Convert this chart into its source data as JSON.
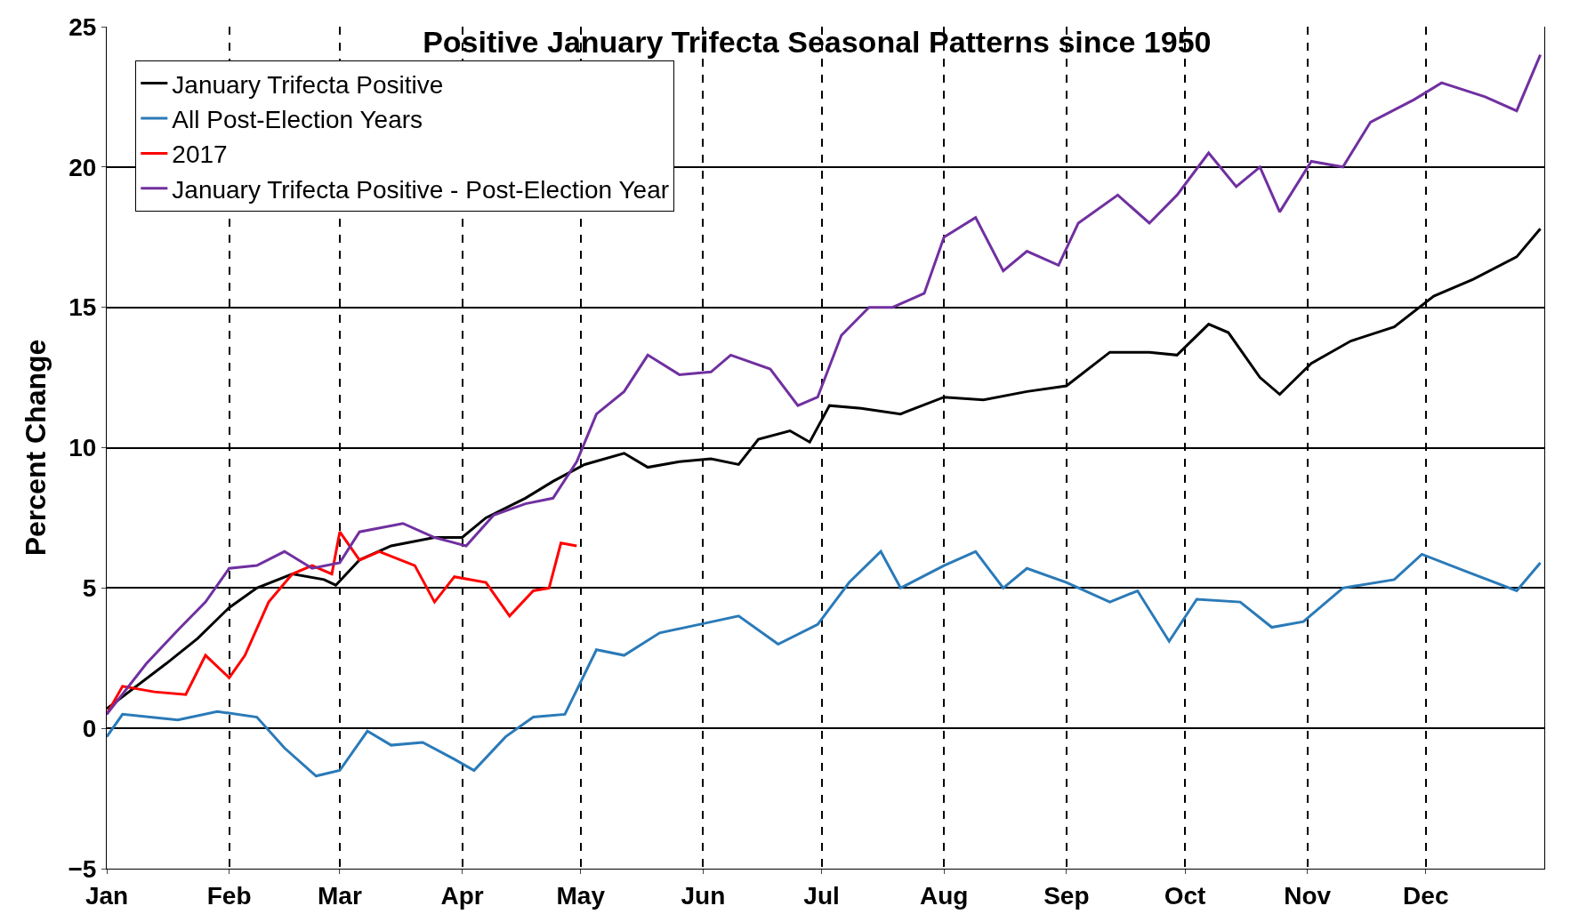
{
  "chart_data": {
    "type": "line",
    "title": "Positive January Trifecta Seasonal Patterns since 1950",
    "ylabel": "Percent Change",
    "xlim": [
      "--01-01",
      "--12-31"
    ],
    "xticks": [
      {
        "value": "--01-01",
        "label": "Jan"
      },
      {
        "value": "--02-01",
        "label": "Feb"
      },
      {
        "value": "--03-01",
        "label": "Mar"
      },
      {
        "value": "--04-01",
        "label": "Apr"
      },
      {
        "value": "--05-01",
        "label": "May"
      },
      {
        "value": "--06-01",
        "label": "Jun"
      },
      {
        "value": "--07-01",
        "label": "Jul"
      },
      {
        "value": "--08-01",
        "label": "Aug"
      },
      {
        "value": "--09-01",
        "label": "Sep"
      },
      {
        "value": "--10-01",
        "label": "Oct"
      },
      {
        "value": "--11-01",
        "label": "Nov"
      },
      {
        "value": "--12-01",
        "label": "Dec"
      }
    ],
    "ylim": [
      -5,
      25
    ],
    "yticks": [
      {
        "value": -5,
        "label": "−5"
      },
      0,
      5,
      10,
      15,
      20,
      25
    ],
    "grid": true,
    "legend": "top left",
    "line_style": "solid",
    "marker": "none",
    "series": [
      {
        "name": "January Trifecta Positive",
        "color": "#000000",
        "x": [
          "--01-01",
          "--01-16",
          "--01-24",
          "--02-01",
          "--02-08",
          "--02-17",
          "--02-25",
          "--02-28",
          "--03-06",
          "--03-14",
          "--03-25",
          "--04-01",
          "--04-07",
          "--04-17",
          "--04-24",
          "--05-02",
          "--05-12",
          "--05-18",
          "--05-26",
          "--06-03",
          "--06-10",
          "--06-15",
          "--06-23",
          "--06-28",
          "--07-03",
          "--07-11",
          "--07-21",
          "--08-01",
          "--08-11",
          "--08-22",
          "--09-01",
          "--09-12",
          "--09-22",
          "--09-29",
          "--10-07",
          "--10-12",
          "--10-20",
          "--10-25",
          "--11-02",
          "--11-12",
          "--11-23",
          "--12-03",
          "--12-13",
          "--12-24",
          "--12-30"
        ],
        "values": [
          0.7,
          2.3,
          3.2,
          4.3,
          5.0,
          5.5,
          5.3,
          5.1,
          6.0,
          6.5,
          6.8,
          6.8,
          7.5,
          8.2,
          8.8,
          9.4,
          9.8,
          9.3,
          9.5,
          9.6,
          9.4,
          10.3,
          10.6,
          10.2,
          11.5,
          11.4,
          11.2,
          11.8,
          11.7,
          12.0,
          12.2,
          13.4,
          13.4,
          13.3,
          14.4,
          14.1,
          12.5,
          11.9,
          13.0,
          13.8,
          14.3,
          15.4,
          16.0,
          16.8,
          17.8
        ]
      },
      {
        "name": "All Post-Election Years",
        "color": "#2a7ab8",
        "x": [
          "--01-01",
          "--01-05",
          "--01-19",
          "--01-29",
          "--02-08",
          "--02-15",
          "--02-23",
          "--03-01",
          "--03-08",
          "--03-14",
          "--03-22",
          "--03-30",
          "--04-04",
          "--04-12",
          "--04-19",
          "--04-27",
          "--05-05",
          "--05-12",
          "--05-21",
          "--05-31",
          "--06-10",
          "--06-20",
          "--06-30",
          "--07-08",
          "--07-16",
          "--07-21",
          "--08-01",
          "--08-09",
          "--08-16",
          "--08-22",
          "--09-01",
          "--09-12",
          "--09-19",
          "--09-27",
          "--10-04",
          "--10-15",
          "--10-23",
          "--10-31",
          "--11-10",
          "--11-23",
          "--11-30",
          "--12-11",
          "--12-24",
          "--12-30"
        ],
        "values": [
          -0.3,
          0.5,
          0.3,
          0.6,
          0.4,
          -0.7,
          -1.7,
          -1.5,
          -0.1,
          -0.6,
          -0.5,
          -1.1,
          -1.5,
          -0.3,
          0.4,
          0.5,
          2.8,
          2.6,
          3.4,
          3.7,
          4.0,
          3.0,
          3.7,
          5.2,
          6.3,
          5.0,
          5.8,
          6.3,
          5.0,
          5.7,
          5.2,
          4.5,
          4.9,
          3.1,
          4.6,
          4.5,
          3.6,
          3.8,
          5.0,
          5.3,
          6.2,
          5.6,
          4.9,
          5.9
        ]
      },
      {
        "name": "2017",
        "color": "#ff0000",
        "x": [
          "--01-01",
          "--01-05",
          "--01-13",
          "--01-21",
          "--01-26",
          "--02-01",
          "--02-05",
          "--02-11",
          "--02-17",
          "--02-22",
          "--02-27",
          "--03-01",
          "--03-06",
          "--03-11",
          "--03-20",
          "--03-25",
          "--03-30",
          "--04-07",
          "--04-13",
          "--04-19",
          "--04-23",
          "--04-26",
          "--04-30"
        ],
        "values": [
          0.5,
          1.5,
          1.3,
          1.2,
          2.6,
          1.8,
          2.6,
          4.5,
          5.5,
          5.8,
          5.5,
          7.0,
          6.0,
          6.3,
          5.8,
          4.5,
          5.4,
          5.2,
          4.0,
          4.9,
          5.0,
          6.6,
          6.5
        ]
      },
      {
        "name": "January Trifecta Positive - Post-Election Year",
        "color": "#7030a0",
        "x": [
          "--01-01",
          "--01-11",
          "--01-19",
          "--01-26",
          "--02-01",
          "--02-08",
          "--02-15",
          "--02-22",
          "--03-01",
          "--03-06",
          "--03-17",
          "--03-25",
          "--04-02",
          "--04-09",
          "--04-17",
          "--04-24",
          "--04-30",
          "--05-05",
          "--05-12",
          "--05-18",
          "--05-26",
          "--06-03",
          "--06-08",
          "--06-18",
          "--06-25",
          "--06-30",
          "--07-06",
          "--07-13",
          "--07-19",
          "--07-27",
          "--08-01",
          "--08-09",
          "--08-16",
          "--08-22",
          "--08-30",
          "--09-04",
          "--09-14",
          "--09-22",
          "--09-29",
          "--10-07",
          "--10-14",
          "--10-20",
          "--10-25",
          "--11-02",
          "--11-10",
          "--11-17",
          "--11-28",
          "--12-05",
          "--12-16",
          "--12-24",
          "--12-30"
        ],
        "values": [
          0.5,
          2.3,
          3.5,
          4.5,
          5.7,
          5.8,
          6.3,
          5.7,
          5.9,
          7.0,
          7.3,
          6.8,
          6.5,
          7.6,
          8.0,
          8.2,
          9.5,
          11.2,
          12.0,
          13.3,
          12.6,
          12.7,
          13.3,
          12.8,
          11.5,
          11.8,
          14.0,
          15.0,
          15.0,
          15.5,
          17.5,
          18.2,
          16.3,
          17.0,
          16.5,
          18.0,
          19.0,
          18.0,
          19.0,
          20.5,
          19.3,
          20.0,
          18.4,
          20.2,
          20.0,
          21.6,
          22.4,
          23.0,
          22.5,
          22.0,
          24.0
        ]
      }
    ]
  }
}
